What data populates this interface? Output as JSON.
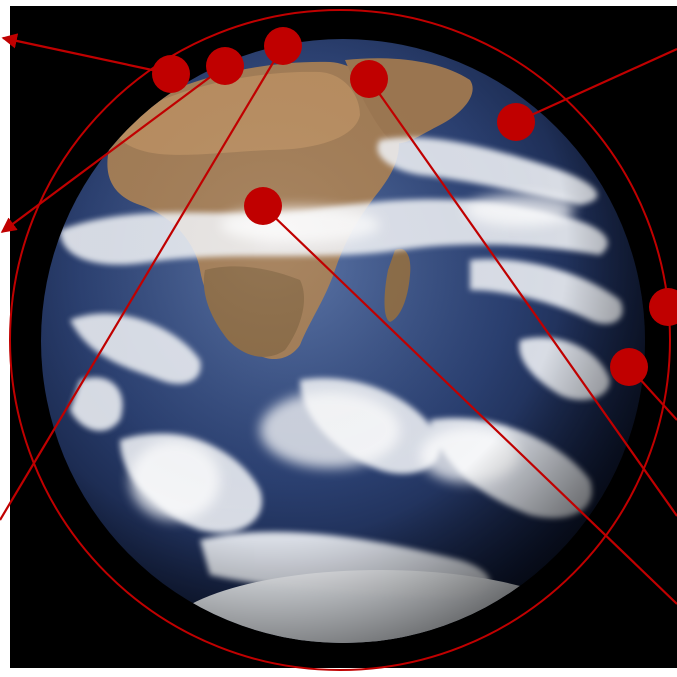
{
  "diagram": {
    "background_color": "#000000",
    "page_color": "#ffffff",
    "annotation_color": "#c00000",
    "globe": {
      "ocean_color": "#2a3f70",
      "land_colors": [
        "#a27c55",
        "#8a6a45",
        "#6b5a3e"
      ],
      "cloud_color": "#f2f4f8",
      "ice_color": "#eef2f7"
    },
    "markers": [
      {
        "id": "m1",
        "arrow_direction": "up-left"
      },
      {
        "id": "m2",
        "arrow_direction": "down-left"
      },
      {
        "id": "m3",
        "arrow_direction": "down-left"
      },
      {
        "id": "m4",
        "arrow_direction": "down-right"
      },
      {
        "id": "m5",
        "arrow_direction": "up-right"
      },
      {
        "id": "m6",
        "arrow_direction": "down-right"
      },
      {
        "id": "m7",
        "arrow_direction": "right"
      },
      {
        "id": "m8",
        "arrow_direction": "down-right"
      }
    ]
  }
}
